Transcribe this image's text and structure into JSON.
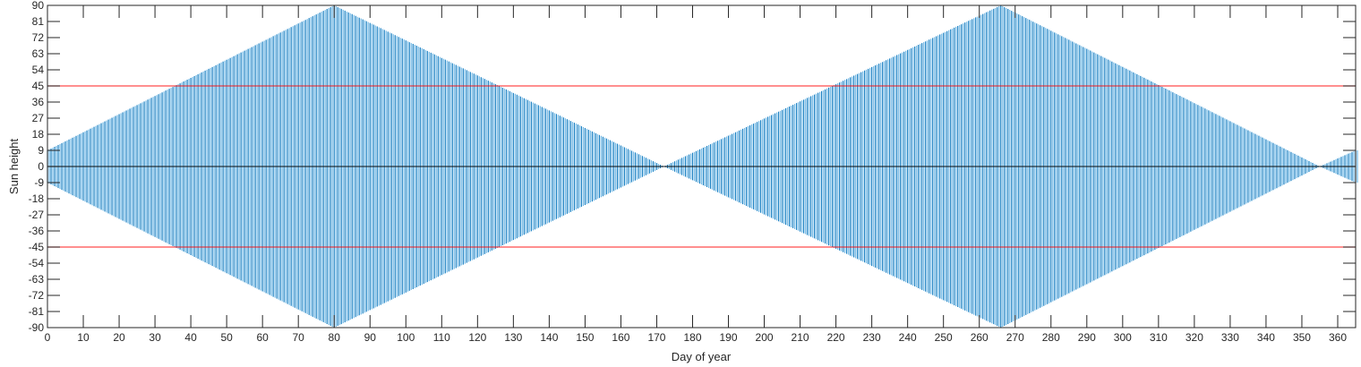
{
  "chart_data": {
    "type": "line",
    "title": "",
    "xlabel": "Day of year",
    "ylabel": "Sun height",
    "xlim": [
      0,
      365
    ],
    "ylim": [
      -90,
      90
    ],
    "xticks": [
      0,
      10,
      20,
      30,
      40,
      50,
      60,
      70,
      80,
      90,
      100,
      110,
      120,
      130,
      140,
      150,
      160,
      170,
      180,
      190,
      200,
      210,
      220,
      230,
      240,
      250,
      260,
      270,
      280,
      290,
      300,
      310,
      320,
      330,
      340,
      350,
      360
    ],
    "yticks": [
      90,
      81,
      72,
      63,
      54,
      45,
      36,
      27,
      18,
      9,
      0,
      -9,
      -18,
      -27,
      -36,
      -45,
      -54,
      -63,
      -72,
      -81,
      -90
    ],
    "grid": false,
    "legend": "none",
    "series": [
      {
        "color": "#0072BD",
        "description_kind": "daily oscillation envelope",
        "envelope_days": [
          0,
          80,
          172,
          266,
          355,
          365
        ],
        "envelope_amplitude": [
          9,
          90,
          0,
          90,
          0,
          9
        ]
      }
    ],
    "reference_lines": [
      {
        "y": 45,
        "color": "#FF0000"
      },
      {
        "y": -45,
        "color": "#FF0000"
      },
      {
        "y": 0,
        "color": "#000000"
      }
    ]
  }
}
